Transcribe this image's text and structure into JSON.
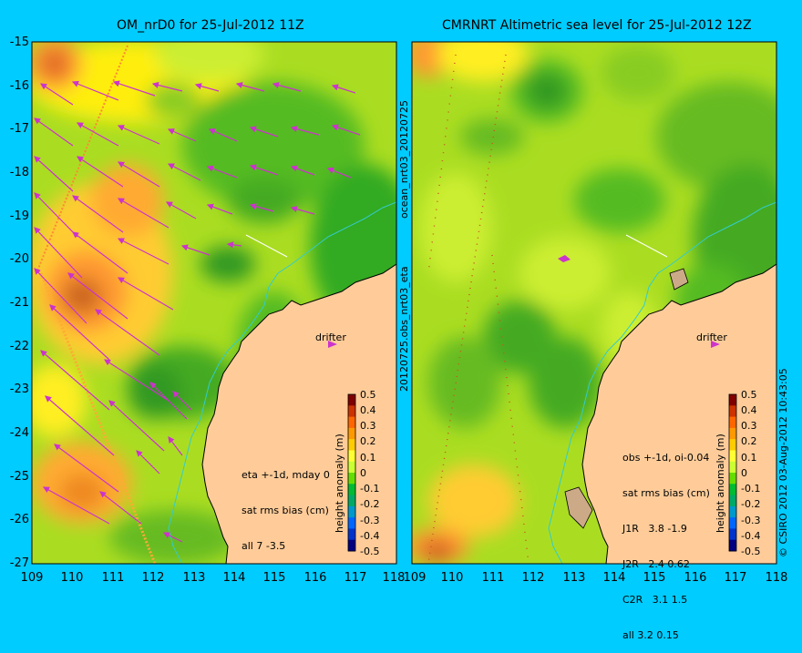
{
  "left_panel": {
    "title": "OM_nrD0 for 25-Jul-2012 11Z",
    "stats_lines": [
      "eta +-1d, mday 0",
      "sat rms bias (cm)",
      "all 7 -3.5"
    ],
    "drifter_label": "drifter"
  },
  "right_panel": {
    "title": "CMRNRT Altimetric sea level  for 25-Jul-2012 12Z",
    "stats_lines": [
      "obs +-1d, oi-0.04",
      "sat rms bias (cm)",
      "J1R   3.8 -1.9",
      "J2R   2.4 0.62",
      "C2R   3.1 1.5",
      "all 3.2 0.15"
    ],
    "drifter_label": "drifter"
  },
  "middle_labels": {
    "top": "ocean_nrt03_20120725",
    "bottom": "20120725.obs_nrt03_eta"
  },
  "right_side_label": "© CSIRO 2012   03-Aug-2012 10:43:05",
  "axes": {
    "lat_ticks": [
      "-15",
      "-16",
      "-17",
      "-18",
      "-19",
      "-20",
      "-21",
      "-22",
      "-23",
      "-24",
      "-25",
      "-26",
      "-27"
    ],
    "lon_ticks": [
      "109",
      "110",
      "111",
      "112",
      "113",
      "114",
      "115",
      "116",
      "117",
      "118"
    ]
  },
  "colorbar": {
    "label": "height anomaly (m)",
    "ticks": [
      "0.5",
      "0.4",
      "0.3",
      "0.2",
      "0.1",
      "0",
      "-0.1",
      "-0.2",
      "-0.3",
      "-0.4",
      "-0.5"
    ],
    "colors": [
      "#800000",
      "#cc3300",
      "#ff6600",
      "#ff9900",
      "#ffcc00",
      "#ffff33",
      "#ccff33",
      "#66dd00",
      "#00bb33",
      "#00aa66",
      "#0099cc",
      "#0066ff",
      "#0033cc",
      "#000080"
    ]
  },
  "colors": {
    "background": "#00ccff",
    "land": "#ffcc99",
    "sea_base": "#99dd11",
    "arrow": "#cc33cc",
    "coast": "#000000",
    "shelf_line": "#33cccc"
  }
}
